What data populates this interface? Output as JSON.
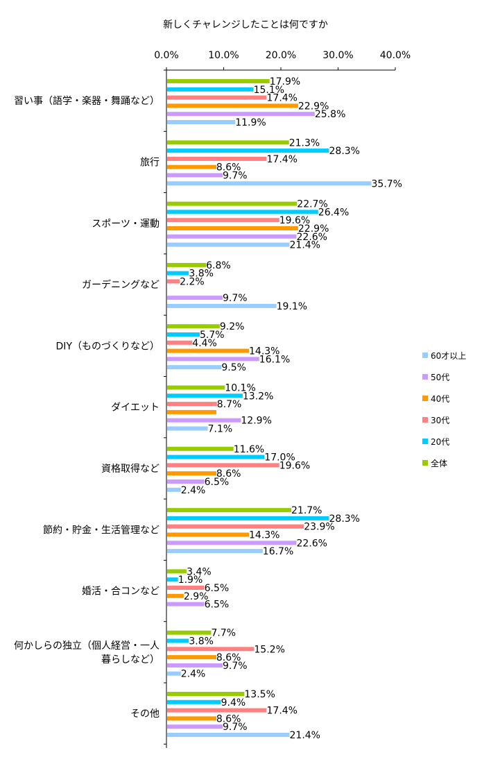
{
  "chart_data": {
    "type": "bar",
    "orientation": "horizontal",
    "title": "新しくチャレンジしたことは何ですか",
    "xlim": [
      0,
      40
    ],
    "xticks": [
      "0.0%",
      "10.0%",
      "20.0%",
      "30.0%",
      "40.0%"
    ],
    "legend_position": "right",
    "categories": [
      "習い事（語学・楽器・舞踊など）",
      "旅行",
      "スポーツ・運動",
      "ガーデニングなど",
      "DIY（ものづくりなど）",
      "ダイエット",
      "資格取得など",
      "節約・貯金・生活管理など",
      "婚活・合コンなど",
      "何かしらの独立（個人経営・一人暮らしなど）",
      "その他"
    ],
    "category_label_lines": [
      [
        "習い事（語学・楽器・舞踊など）"
      ],
      [
        "旅行"
      ],
      [
        "スポーツ・運動"
      ],
      [
        "ガーデニングなど"
      ],
      [
        "DIY（ものづくりなど）"
      ],
      [
        "ダイエット"
      ],
      [
        "資格取得など"
      ],
      [
        "節約・貯金・生活管理など"
      ],
      [
        "婚活・合コンなど"
      ],
      [
        "何かしらの独立（個人経営・一人",
        "暮らしなど）"
      ],
      [
        "その他"
      ]
    ],
    "series": [
      {
        "name": "全体",
        "color": "#99cc00",
        "values": [
          17.9,
          21.3,
          22.7,
          6.8,
          9.2,
          10.1,
          11.6,
          21.7,
          3.4,
          7.7,
          13.5
        ],
        "labels": [
          "17.9%",
          "21.3%",
          "22.7%",
          "6.8%",
          "9.2%",
          "10.1%",
          "11.6%",
          "21.7%",
          "3.4%",
          "7.7%",
          "13.5%"
        ]
      },
      {
        "name": "20代",
        "color": "#00ccff",
        "values": [
          15.1,
          28.3,
          26.4,
          3.8,
          5.7,
          13.2,
          17.0,
          28.3,
          1.9,
          3.8,
          9.4
        ],
        "labels": [
          "15.1%",
          "28.3%",
          "26.4%",
          "3.8%",
          "5.7%",
          "13.2%",
          "17.0%",
          "28.3%",
          "1.9%",
          "3.8%",
          "9.4%"
        ]
      },
      {
        "name": "30代",
        "color": "#ff8080",
        "values": [
          17.4,
          17.4,
          19.6,
          2.2,
          4.4,
          8.7,
          19.6,
          23.9,
          6.5,
          15.2,
          17.4
        ],
        "labels": [
          "17.4%",
          "17.4%",
          "19.6%",
          "2.2%",
          "4.4%",
          "8.7%",
          "19.6%",
          "23.9%",
          "6.5%",
          "15.2%",
          "17.4%"
        ]
      },
      {
        "name": "40代",
        "color": "#ff9900",
        "values": [
          22.9,
          8.6,
          22.9,
          0,
          14.3,
          8.6,
          8.6,
          14.3,
          2.9,
          8.6,
          8.6
        ],
        "labels": [
          "22.9%",
          "8.6%",
          "22.9%",
          "",
          "14.3%",
          "",
          "8.6%",
          "14.3%",
          "2.9%",
          "8.6%",
          "8.6%"
        ]
      },
      {
        "name": "50代",
        "color": "#cc99ff",
        "values": [
          25.8,
          9.7,
          22.6,
          9.7,
          16.1,
          12.9,
          6.5,
          22.6,
          6.5,
          9.7,
          9.7
        ],
        "labels": [
          "25.8%",
          "9.7%",
          "22.6%",
          "9.7%",
          "16.1%",
          "12.9%",
          "6.5%",
          "22.6%",
          "6.5%",
          "9.7%",
          "9.7%"
        ]
      },
      {
        "name": "60才以上",
        "color": "#99ccff",
        "values": [
          11.9,
          35.7,
          21.4,
          19.1,
          9.5,
          7.1,
          2.4,
          16.7,
          0,
          2.4,
          21.4
        ],
        "labels": [
          "11.9%",
          "35.7%",
          "21.4%",
          "19.1%",
          "9.5%",
          "7.1%",
          "2.4%",
          "16.7%",
          "",
          "2.4%",
          "21.4%"
        ]
      }
    ],
    "legend_order": [
      "60才以上",
      "50代",
      "40代",
      "30代",
      "20代",
      "全体"
    ]
  }
}
